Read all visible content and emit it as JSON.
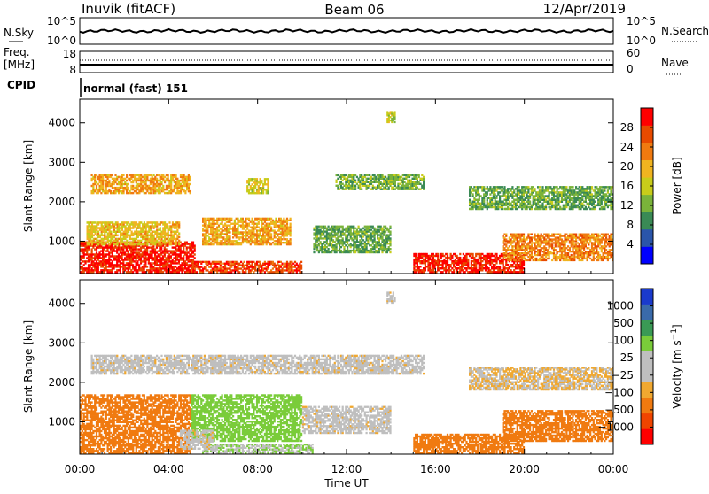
{
  "header": {
    "station": "Inuvik (fitACF)",
    "beam": "Beam 06",
    "date": "12/Apr/2019"
  },
  "top_panels": {
    "nsky_label": "N.Sky",
    "nsearch_label": "N.Search",
    "noise_ticks_left": [
      "10^5",
      "10^0"
    ],
    "noise_ticks_right": [
      "10^5",
      "10^0"
    ],
    "freq_label": "Freq.",
    "freq_unit": "[MHz]",
    "freq_ticks": [
      "18",
      "8"
    ],
    "nave_label": "Nave",
    "nave_ticks": [
      "60",
      "0"
    ],
    "cpid_label": "CPID",
    "cpid_text": "normal (fast) 151"
  },
  "colors": {
    "power_scale": [
      "#0000ff",
      "#2a55aa",
      "#3a8a55",
      "#7ab33a",
      "#c8cc1a",
      "#f0b420",
      "#f07a10",
      "#e84a00",
      "#ff0000"
    ],
    "velocity_scale": [
      "#ff0000",
      "#f04400",
      "#f07a10",
      "#f0a830",
      "#bfbfbf",
      "#bfbfbf",
      "#7acc3a",
      "#3a9a55",
      "#3a6aaa",
      "#1a3acc"
    ]
  },
  "chart_data": [
    {
      "type": "heatmap",
      "title": "",
      "xlabel": "Time UT",
      "ylabel": "Slant Range [km]",
      "xlim": [
        "00:00",
        "24:00"
      ],
      "ylim": [
        180,
        4600
      ],
      "x_ticks": [
        "00:00",
        "04:00",
        "08:00",
        "12:00",
        "16:00",
        "20:00",
        "00:00"
      ],
      "y_ticks": [
        "1000",
        "2000",
        "3000",
        "4000"
      ],
      "colorbar": {
        "label": "Power [dB]",
        "ticks": [
          "4",
          "8",
          "12",
          "16",
          "20",
          "24",
          "28"
        ],
        "range": [
          0,
          30
        ]
      },
      "regions": [
        {
          "t0": 0.0,
          "t1": 5.2,
          "r0": 200,
          "r1": 1000,
          "value": 26
        },
        {
          "t0": 0.3,
          "t1": 4.5,
          "r0": 900,
          "r1": 1500,
          "value": 16
        },
        {
          "t0": 5.0,
          "t1": 10.0,
          "r0": 200,
          "r1": 500,
          "value": 24
        },
        {
          "t0": 5.5,
          "t1": 9.5,
          "r0": 900,
          "r1": 1600,
          "value": 18
        },
        {
          "t0": 0.5,
          "t1": 5.0,
          "r0": 2200,
          "r1": 2700,
          "value": 18
        },
        {
          "t0": 7.5,
          "t1": 8.5,
          "r0": 2200,
          "r1": 2600,
          "value": 14
        },
        {
          "t0": 11.5,
          "t1": 15.5,
          "r0": 2300,
          "r1": 2700,
          "value": 10
        },
        {
          "t0": 10.5,
          "t1": 14.0,
          "r0": 700,
          "r1": 1400,
          "value": 9
        },
        {
          "t0": 15.0,
          "t1": 20.0,
          "r0": 200,
          "r1": 700,
          "value": 26
        },
        {
          "t0": 19.0,
          "t1": 24.0,
          "r0": 500,
          "r1": 1200,
          "value": 20
        },
        {
          "t0": 17.5,
          "t1": 24.0,
          "r0": 1800,
          "r1": 2400,
          "value": 9
        },
        {
          "t0": 13.8,
          "t1": 14.2,
          "r0": 4000,
          "r1": 4300,
          "value": 13
        }
      ]
    },
    {
      "type": "heatmap",
      "title": "",
      "xlabel": "Time UT",
      "ylabel": "Slant Range [km]",
      "xlim": [
        "00:00",
        "24:00"
      ],
      "ylim": [
        180,
        4600
      ],
      "x_ticks": [
        "00:00",
        "04:00",
        "08:00",
        "12:00",
        "16:00",
        "20:00",
        "00:00"
      ],
      "y_ticks": [
        "1000",
        "2000",
        "3000",
        "4000"
      ],
      "colorbar": {
        "label": "Velocity [m s^-1]",
        "ticks": [
          "1000",
          "500",
          "100",
          "25",
          "−25",
          "−100",
          "−500",
          "−1000"
        ]
      },
      "regions": [
        {
          "t0": 0.0,
          "t1": 5.0,
          "r0": 200,
          "r1": 1700,
          "value": -200
        },
        {
          "t0": 5.0,
          "t1": 10.0,
          "r0": 500,
          "r1": 1700,
          "value": 200
        },
        {
          "t0": 5.5,
          "t1": 10.5,
          "r0": 200,
          "r1": 450,
          "value": 60
        },
        {
          "t0": 4.5,
          "t1": 6.0,
          "r0": 300,
          "r1": 800,
          "value": 0
        },
        {
          "t0": 0.5,
          "t1": 15.5,
          "r0": 2200,
          "r1": 2700,
          "value": 0
        },
        {
          "t0": 10.0,
          "t1": 14.0,
          "r0": 700,
          "r1": 1400,
          "value": 0
        },
        {
          "t0": 15.0,
          "t1": 20.0,
          "r0": 200,
          "r1": 700,
          "value": -200
        },
        {
          "t0": 19.0,
          "t1": 24.0,
          "r0": 500,
          "r1": 1300,
          "value": -200
        },
        {
          "t0": 17.5,
          "t1": 24.0,
          "r0": 1800,
          "r1": 2400,
          "value": -50
        },
        {
          "t0": 13.8,
          "t1": 14.2,
          "r0": 4000,
          "r1": 4300,
          "value": 0
        }
      ]
    }
  ]
}
